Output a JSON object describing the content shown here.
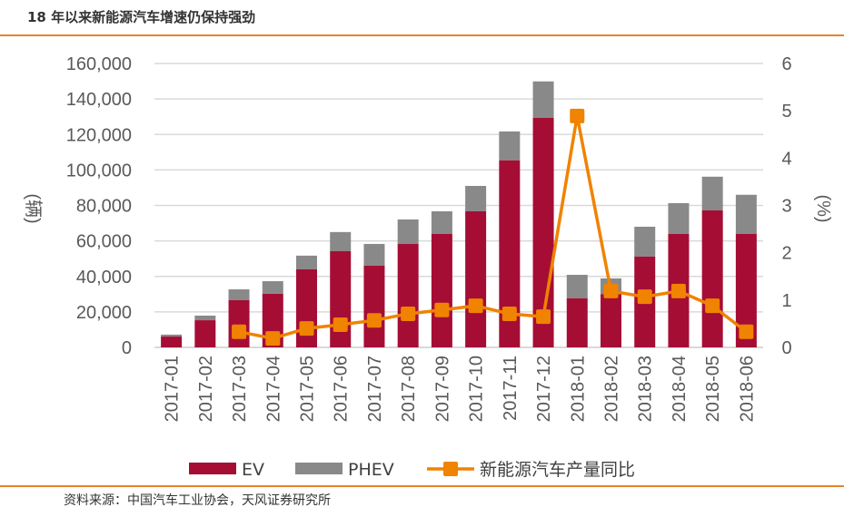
{
  "title": "18 年以来新能源汽车增速仍保持强劲",
  "source": "资料来源：中国汽车工业协会，天风证券研究所",
  "chart_data": {
    "type": "bar",
    "stacked": true,
    "categories": [
      "2017-01",
      "2017-02",
      "2017-03",
      "2017-04",
      "2017-05",
      "2017-06",
      "2017-07",
      "2017-08",
      "2017-09",
      "2017-10",
      "2017-11",
      "2017-12",
      "2018-01",
      "2018-02",
      "2018-03",
      "2018-04",
      "2018-05",
      "2018-06"
    ],
    "series": [
      {
        "name": "EV",
        "type": "bar",
        "axis": "left",
        "color": "#a50d35",
        "values": [
          6100,
          15300,
          26600,
          30200,
          44000,
          54200,
          46000,
          58300,
          64000,
          76700,
          105400,
          129400,
          27600,
          30000,
          51200,
          64000,
          77200,
          64000
        ]
      },
      {
        "name": "PHEV",
        "type": "bar",
        "axis": "left",
        "color": "#898989",
        "values": [
          1100,
          2600,
          6100,
          7100,
          7700,
          10800,
          12300,
          13800,
          12700,
          14300,
          16300,
          20500,
          13300,
          8900,
          16800,
          17300,
          19000,
          22000
        ]
      },
      {
        "name": "新能源汽车产量同比",
        "type": "line",
        "axis": "right",
        "color": "#f08300",
        "values": [
          null,
          null,
          0.33,
          0.19,
          0.4,
          0.48,
          0.57,
          0.71,
          0.79,
          0.88,
          0.71,
          0.65,
          4.89,
          1.19,
          1.07,
          1.19,
          0.88,
          0.33
        ]
      }
    ],
    "ylabel": "(辆)",
    "y2label": "(%)",
    "ylim": [
      0,
      160000
    ],
    "y2lim": [
      0,
      6
    ],
    "yticks": [
      "0",
      "20,000",
      "40,000",
      "60,000",
      "80,000",
      "100,000",
      "120,000",
      "140,000",
      "160,000"
    ],
    "y2ticks": [
      "0",
      "1",
      "2",
      "3",
      "4",
      "5",
      "6"
    ],
    "grid": true,
    "legend": "bottom"
  }
}
